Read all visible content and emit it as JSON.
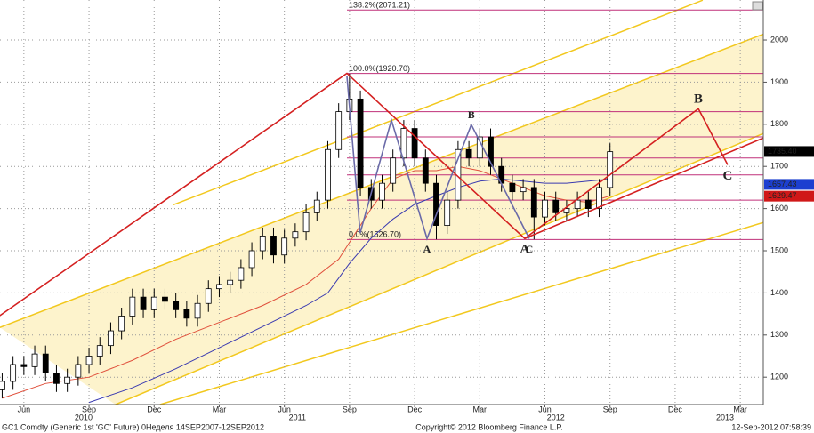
{
  "footer": {
    "left": "GC1 Comdty (Generic 1st 'GC' Future) 0Неделя 14SEP2007-12SEP2012",
    "center": "Copyright© 2012 Bloomberg Finance L.P.",
    "right": "12-Sep-2012 07:58:39"
  },
  "chart_data": {
    "type": "candlestick",
    "x": [
      4,
      4.5,
      5,
      5.5,
      6,
      6.5,
      7,
      7.5,
      8,
      8.5,
      9,
      9.5,
      10,
      10.5,
      11,
      11.5,
      12,
      12.5,
      13,
      13.5,
      14,
      14.5,
      15,
      15.5,
      16,
      16.5,
      17,
      17.5,
      18,
      18.5,
      19,
      19.5,
      20,
      20.5,
      21,
      21.5,
      22,
      22.5,
      23,
      23.5,
      24,
      24.5,
      25,
      25.5,
      26,
      26.5,
      27,
      27.5,
      28,
      28.5,
      29,
      29.5,
      30,
      30.5,
      31,
      31.5,
      32
    ],
    "open": [
      1170,
      1190,
      1230,
      1225,
      1255,
      1210,
      1185,
      1200,
      1230,
      1250,
      1275,
      1310,
      1345,
      1390,
      1360,
      1390,
      1380,
      1360,
      1340,
      1375,
      1410,
      1420,
      1430,
      1460,
      1500,
      1535,
      1490,
      1530,
      1545,
      1590,
      1620,
      1740,
      1830,
      1860,
      1650,
      1620,
      1660,
      1720,
      1790,
      1720,
      1660,
      1560,
      1620,
      1740,
      1720,
      1770,
      1700,
      1660,
      1640,
      1650,
      1580,
      1620,
      1590,
      1600,
      1620,
      1600,
      1650
    ],
    "high": [
      1210,
      1250,
      1250,
      1275,
      1275,
      1230,
      1220,
      1250,
      1270,
      1295,
      1330,
      1365,
      1410,
      1410,
      1410,
      1410,
      1400,
      1380,
      1395,
      1430,
      1440,
      1450,
      1480,
      1520,
      1555,
      1555,
      1550,
      1565,
      1610,
      1640,
      1760,
      1850,
      1920,
      1880,
      1670,
      1680,
      1740,
      1810,
      1810,
      1740,
      1680,
      1640,
      1760,
      1760,
      1790,
      1790,
      1720,
      1680,
      1670,
      1670,
      1640,
      1640,
      1620,
      1640,
      1640,
      1670,
      1755
    ],
    "low": [
      1150,
      1170,
      1205,
      1205,
      1190,
      1165,
      1165,
      1180,
      1210,
      1230,
      1255,
      1290,
      1325,
      1340,
      1340,
      1360,
      1340,
      1320,
      1320,
      1355,
      1390,
      1400,
      1410,
      1440,
      1480,
      1470,
      1470,
      1510,
      1525,
      1570,
      1600,
      1720,
      1810,
      1630,
      1600,
      1600,
      1640,
      1700,
      1700,
      1640,
      1527,
      1540,
      1600,
      1700,
      1700,
      1680,
      1640,
      1620,
      1620,
      1527,
      1560,
      1570,
      1570,
      1580,
      1580,
      1580,
      1630
    ],
    "close": [
      1190,
      1230,
      1225,
      1255,
      1210,
      1185,
      1200,
      1230,
      1250,
      1275,
      1310,
      1345,
      1390,
      1360,
      1390,
      1380,
      1360,
      1340,
      1375,
      1410,
      1420,
      1430,
      1460,
      1500,
      1535,
      1490,
      1530,
      1545,
      1590,
      1620,
      1740,
      1830,
      1860,
      1650,
      1620,
      1660,
      1720,
      1790,
      1720,
      1660,
      1560,
      1620,
      1740,
      1720,
      1770,
      1700,
      1660,
      1640,
      1650,
      1580,
      1620,
      1590,
      1600,
      1620,
      1600,
      1650,
      1735
    ],
    "up_color": "#ffffff",
    "down_color": "#000000",
    "xlim": [
      3.9,
      39.06
    ],
    "ylim": [
      1135,
      2095
    ],
    "yticks": [
      1200,
      1300,
      1400,
      1500,
      1600,
      1700,
      1800,
      1900,
      2000
    ],
    "xticks": [
      {
        "value": 5,
        "label": "Jun"
      },
      {
        "value": 8,
        "label": "Sep"
      },
      {
        "value": 11,
        "label": "Dec"
      },
      {
        "value": 14,
        "label": "Mar"
      },
      {
        "value": 17,
        "label": "Jun"
      },
      {
        "value": 20,
        "label": "Sep"
      },
      {
        "value": 23,
        "label": "Dec"
      },
      {
        "value": 26,
        "label": "Mar"
      },
      {
        "value": 29,
        "label": "Jun"
      },
      {
        "value": 32,
        "label": "Sep"
      },
      {
        "value": 35,
        "label": "Dec"
      },
      {
        "value": 38,
        "label": "Mar"
      }
    ],
    "xticks2": [
      {
        "value": 7.75,
        "label": "2010"
      },
      {
        "value": 17.6,
        "label": "2011"
      },
      {
        "value": 29.5,
        "label": "2012"
      },
      {
        "value": 37.3,
        "label": "2013"
      }
    ],
    "grid": true,
    "series": [
      {
        "type": "line",
        "color": "#e0503c",
        "x": [
          4,
          6,
          8,
          10,
          12,
          14,
          16,
          18,
          19.5,
          21,
          22,
          23,
          24,
          25,
          26,
          27,
          28,
          29,
          30,
          31,
          32
        ],
        "values": [
          1150,
          1185,
          1200,
          1240,
          1290,
          1330,
          1370,
          1420,
          1480,
          1600,
          1670,
          1690,
          1690,
          1700,
          1690,
          1670,
          1650,
          1630,
          1620,
          1615,
          1630
        ]
      },
      {
        "type": "line",
        "color": "#3a3ab0",
        "x": [
          8,
          10,
          12,
          14,
          16,
          18,
          19,
          20,
          21,
          22,
          23,
          24,
          25,
          26,
          27,
          28,
          29,
          30,
          31,
          32
        ],
        "values": [
          1140,
          1175,
          1220,
          1270,
          1320,
          1370,
          1400,
          1470,
          1530,
          1575,
          1610,
          1630,
          1650,
          1665,
          1670,
          1665,
          1660,
          1660,
          1665,
          1670
        ]
      }
    ],
    "price_tags": [
      {
        "value": 1735.4,
        "label": "1735.40",
        "color": "#000000"
      },
      {
        "value": 1657.43,
        "label": "1657.43",
        "color": "#1c3fd0"
      },
      {
        "value": 1629.47,
        "label": "1629.47",
        "color": "#d01818"
      }
    ],
    "fib_color": "#c0307a",
    "fib_levels": [
      {
        "value": 2071.21,
        "label": "138.2%(2071.21)"
      },
      {
        "value": 1920.7,
        "label": "100.0%(1920.70)"
      },
      {
        "value": 1526.7,
        "label": "0.0%(1526.70)"
      },
      {
        "value": 1830
      },
      {
        "value": 1770
      },
      {
        "value": 1720
      },
      {
        "value": 1680
      },
      {
        "value": 1620
      }
    ],
    "channel": {
      "color": "#f2c81e",
      "fill": "#fdf3cc",
      "upper": [
        [
          3.89,
          1318
        ],
        [
          39.06,
          2014
        ]
      ],
      "lower": [
        [
          9.22,
          1135
        ],
        [
          39.06,
          1778
        ]
      ]
    },
    "lines": [
      [
        [
          11.89,
          1609
        ],
        [
          36.27,
          2094.5
        ]
      ],
      [
        [
          11.27,
          1135
        ],
        [
          39.06,
          1567
        ]
      ]
    ],
    "zigzags": [
      {
        "color": "#d42020",
        "points": [
          [
            3.89,
            1346
          ],
          [
            19.88,
            1921
          ],
          [
            28.07,
            1529
          ],
          [
            36.07,
            1837
          ],
          [
            37.42,
            1704
          ]
        ],
        "labels": [
          null,
          null,
          "A",
          "B",
          "C"
        ]
      },
      {
        "color": "#d42020",
        "points": [
          [
            28.07,
            1529
          ],
          [
            39.06,
            1767.5
          ]
        ]
      },
      {
        "color": "#6a6aa8",
        "points": [
          [
            19.88,
            1915
          ],
          [
            20.49,
            1542
          ],
          [
            21.93,
            1810
          ],
          [
            23.57,
            1529
          ],
          [
            25.61,
            1799
          ],
          [
            28.28,
            1529
          ]
        ],
        "labels": [
          null,
          null,
          null,
          "A",
          "B",
          "C"
        ]
      }
    ]
  }
}
